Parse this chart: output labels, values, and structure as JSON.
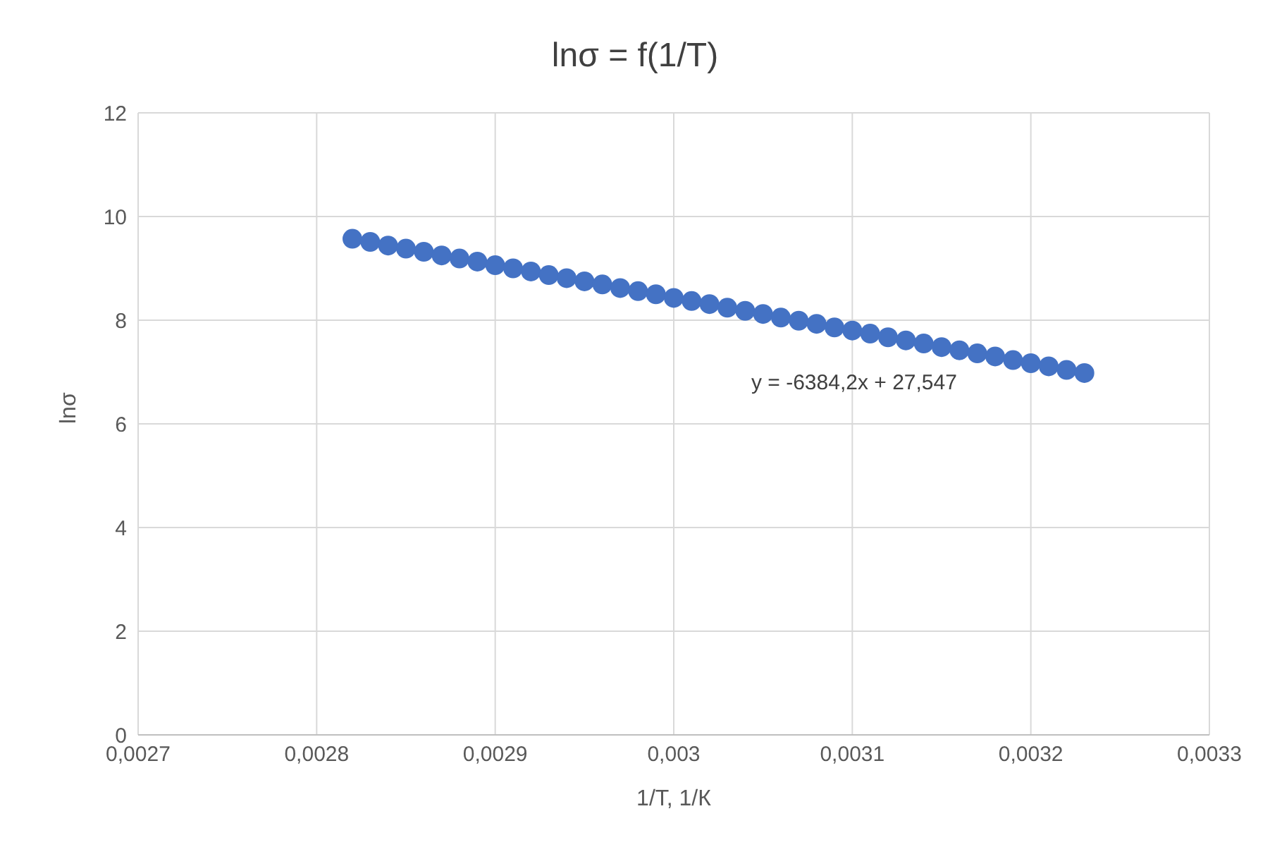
{
  "chart_data": {
    "type": "scatter",
    "title": "lnσ = f(1/T)",
    "xlabel": "1/T, 1/К",
    "ylabel": "lnσ",
    "x": [
      0.00282,
      0.00283,
      0.00284,
      0.00285,
      0.00286,
      0.00287,
      0.00288,
      0.00289,
      0.0029,
      0.00291,
      0.00292,
      0.00293,
      0.00294,
      0.00295,
      0.00296,
      0.00297,
      0.00298,
      0.00299,
      0.003,
      0.00301,
      0.00302,
      0.00303,
      0.00304,
      0.00305,
      0.00306,
      0.00307,
      0.00308,
      0.00309,
      0.0031,
      0.00311,
      0.00312,
      0.00313,
      0.00314,
      0.00315,
      0.00316,
      0.00317,
      0.00318,
      0.00319,
      0.0032,
      0.00321,
      0.00322,
      0.00323
    ],
    "series": [
      {
        "color": "#4472c4",
        "values": [
          9.57,
          9.51,
          9.44,
          9.38,
          9.32,
          9.25,
          9.19,
          9.13,
          9.06,
          9.0,
          8.94,
          8.87,
          8.81,
          8.75,
          8.69,
          8.62,
          8.56,
          8.5,
          8.43,
          8.37,
          8.31,
          8.24,
          8.18,
          8.12,
          8.05,
          7.99,
          7.93,
          7.86,
          7.8,
          7.74,
          7.67,
          7.61,
          7.55,
          7.48,
          7.42,
          7.36,
          7.3,
          7.23,
          7.17,
          7.11,
          7.04,
          6.98
        ]
      }
    ],
    "xlim": [
      0.0027,
      0.0033
    ],
    "xticks": [
      {
        "value": 0.0027,
        "label": "0,0027"
      },
      {
        "value": 0.0028,
        "label": "0,0028"
      },
      {
        "value": 0.0029,
        "label": "0,0029"
      },
      {
        "value": 0.003,
        "label": "0,003"
      },
      {
        "value": 0.0031,
        "label": "0,0031"
      },
      {
        "value": 0.0032,
        "label": "0,0032"
      },
      {
        "value": 0.0033,
        "label": "0,0033"
      }
    ],
    "ylim": [
      0,
      12
    ],
    "yticks": [
      0,
      2,
      4,
      6,
      8,
      10,
      12
    ],
    "grid": true,
    "marker": "circle",
    "annotations": [
      "y = -6384,2x + 27,547"
    ]
  }
}
